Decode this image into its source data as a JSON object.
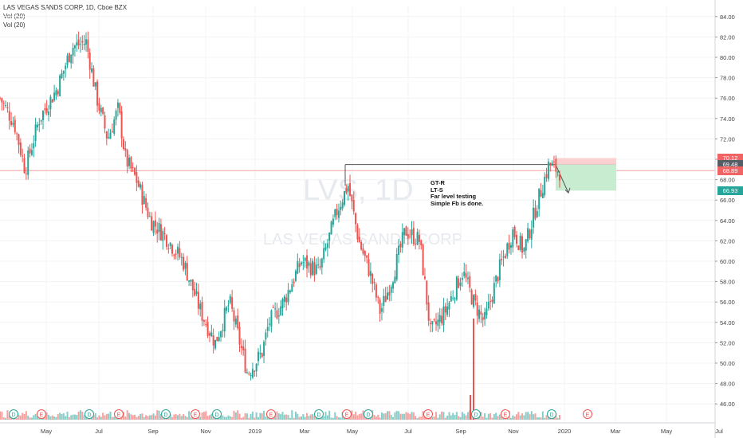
{
  "legend": {
    "title": "LAS VEGAS SANDS CORP, 1D, Cboe BZX",
    "vol1": "Vol (20)",
    "vol2": "Vol (20)"
  },
  "watermark": {
    "symbol": "LVS, 1D",
    "name": "LAS VEGAS SANDS CORP"
  },
  "note": [
    "GT-R",
    "LT-S",
    "Far level testing",
    "Simple Fb is done."
  ],
  "price_badges": [
    {
      "value": "70.12",
      "color": "#f06464"
    },
    {
      "value": "69.48",
      "color": "#555d66"
    },
    {
      "value": "68.89",
      "color": "#f06464"
    },
    {
      "value": "66.93",
      "color": "#26a69a"
    }
  ],
  "colors": {
    "up": "#26a69a",
    "down": "#ef5350",
    "line": "#f4a3a3",
    "target": "#c8ecd0",
    "stop": "#fbd0d0"
  },
  "chart_data": {
    "type": "candlestick",
    "title": "LAS VEGAS SANDS CORP, 1D, Cboe BZX",
    "ylim": [
      45,
      85
    ],
    "y_ticks": [
      "84.00",
      "82.00",
      "80.00",
      "78.00",
      "76.00",
      "74.00",
      "72.00",
      "70.00",
      "68.00",
      "66.00",
      "64.00",
      "62.00",
      "60.00",
      "58.00",
      "56.00",
      "54.00",
      "52.00",
      "50.00",
      "48.00",
      "46.00"
    ],
    "x_ticks": [
      "May",
      "Jul",
      "Sep",
      "Nov",
      "2019",
      "Mar",
      "May",
      "Jul",
      "Sep",
      "Nov",
      "2020",
      "Mar",
      "May",
      "Jul"
    ],
    "price_path": [
      {
        "t": 0,
        "p": 76.0
      },
      {
        "t": 0.02,
        "p": 73.5
      },
      {
        "t": 0.035,
        "p": 69.0
      },
      {
        "t": 0.055,
        "p": 74.0
      },
      {
        "t": 0.08,
        "p": 77.0
      },
      {
        "t": 0.1,
        "p": 81.0
      },
      {
        "t": 0.12,
        "p": 81.5
      },
      {
        "t": 0.135,
        "p": 76.0
      },
      {
        "t": 0.15,
        "p": 72.0
      },
      {
        "t": 0.165,
        "p": 75.0
      },
      {
        "t": 0.175,
        "p": 70.0
      },
      {
        "t": 0.19,
        "p": 68.0
      },
      {
        "t": 0.21,
        "p": 64.0
      },
      {
        "t": 0.23,
        "p": 62.5
      },
      {
        "t": 0.255,
        "p": 60.0
      },
      {
        "t": 0.28,
        "p": 55.0
      },
      {
        "t": 0.3,
        "p": 52.0
      },
      {
        "t": 0.32,
        "p": 56.0
      },
      {
        "t": 0.345,
        "p": 49.0
      },
      {
        "t": 0.365,
        "p": 51.0
      },
      {
        "t": 0.375,
        "p": 54.0
      },
      {
        "t": 0.395,
        "p": 56.0
      },
      {
        "t": 0.42,
        "p": 60.0
      },
      {
        "t": 0.445,
        "p": 59.0
      },
      {
        "t": 0.47,
        "p": 65.0
      },
      {
        "t": 0.485,
        "p": 67.5
      },
      {
        "t": 0.5,
        "p": 62.0
      },
      {
        "t": 0.515,
        "p": 59.0
      },
      {
        "t": 0.53,
        "p": 55.0
      },
      {
        "t": 0.545,
        "p": 58.0
      },
      {
        "t": 0.565,
        "p": 63.0
      },
      {
        "t": 0.585,
        "p": 62.0
      },
      {
        "t": 0.6,
        "p": 53.0
      },
      {
        "t": 0.62,
        "p": 55.0
      },
      {
        "t": 0.645,
        "p": 59.0
      },
      {
        "t": 0.66,
        "p": 56.0
      },
      {
        "t": 0.675,
        "p": 54.0
      },
      {
        "t": 0.695,
        "p": 59.0
      },
      {
        "t": 0.715,
        "p": 63.0
      },
      {
        "t": 0.73,
        "p": 61.0
      },
      {
        "t": 0.75,
        "p": 66.0
      },
      {
        "t": 0.765,
        "p": 69.5
      },
      {
        "t": 0.78,
        "p": 68.8
      }
    ],
    "resistance_level": 69.48,
    "position": {
      "entry": 69.48,
      "stop": 70.12,
      "target": 66.93
    },
    "volume_spike_at": 0.66
  }
}
